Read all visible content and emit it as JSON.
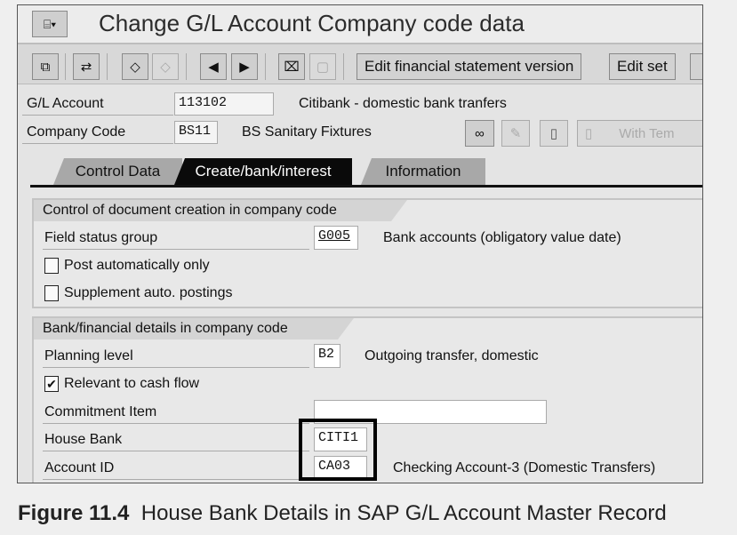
{
  "window": {
    "title": "Change G/L Account Company code data"
  },
  "toolbar": {
    "edit_fsv": "Edit financial statement version",
    "edit_set": "Edit set"
  },
  "header": {
    "gl_account_label": "G/L Account",
    "gl_account_value": "113102",
    "gl_account_desc": "Citibank - domestic bank tranfers",
    "company_code_label": "Company Code",
    "company_code_value": "BS11",
    "company_code_desc": "BS Sanitary Fixtures",
    "with_template": "With Tem"
  },
  "tabs": [
    {
      "label": "Control Data"
    },
    {
      "label": "Create/bank/interest",
      "active": true
    },
    {
      "label": "Information"
    }
  ],
  "group1": {
    "title": "Control of document creation in company code",
    "field_status_label": "Field status group",
    "field_status_value": "G005",
    "field_status_desc": "Bank accounts (obligatory value date)",
    "post_auto_label": "Post automatically only",
    "post_auto_checked": false,
    "supplement_label": "Supplement auto. postings",
    "supplement_checked": false
  },
  "group2": {
    "title": "Bank/financial details in company code",
    "planning_label": "Planning level",
    "planning_value": "B2",
    "planning_desc": "Outgoing transfer, domestic",
    "cashflow_label": "Relevant to cash flow",
    "cashflow_checked": true,
    "check_mark": "✔",
    "commitment_label": "Commitment Item",
    "commitment_value": "",
    "house_bank_label": "House Bank",
    "house_bank_value": "CITI1",
    "account_id_label": "Account ID",
    "account_id_value": "CA03",
    "account_id_desc": "Checking Account-3 (Domestic Transfers)"
  },
  "caption": {
    "figure": "Figure 11.4",
    "text": "House Bank Details in SAP G/L Account Master Record"
  }
}
